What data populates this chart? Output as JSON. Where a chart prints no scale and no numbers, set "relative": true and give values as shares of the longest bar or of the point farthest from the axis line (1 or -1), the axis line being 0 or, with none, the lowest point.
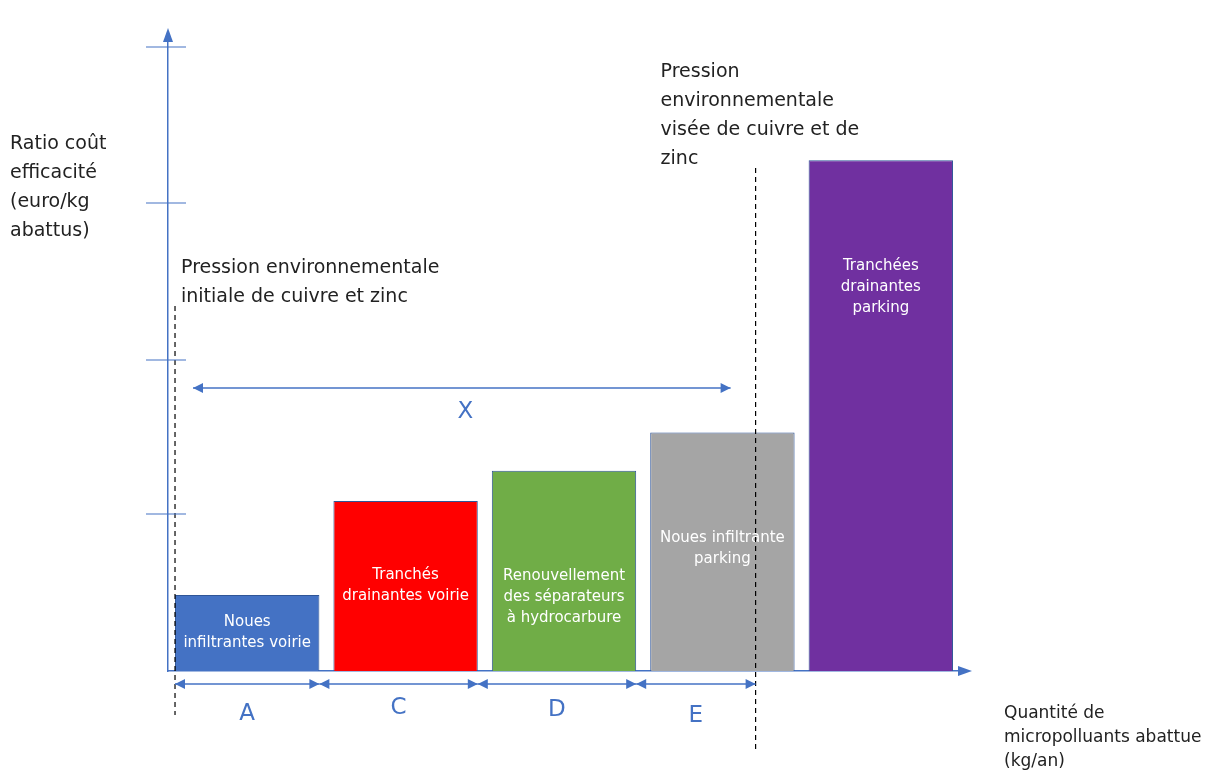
{
  "chart_data": {
    "type": "bar",
    "relative": true,
    "categories": [
      "Noues infiltrantes voirie",
      "Tranchés drainantes voirie",
      "Renouvellement des séparateurs à hydrocarbure",
      "Noues infiltrante parking",
      "Tranchées drainantes parking"
    ],
    "values": [
      0.149,
      0.333,
      0.392,
      0.467,
      1
    ],
    "colors": [
      "#4472c4",
      "#ff0000",
      "#70ad47",
      "#a5a5a5",
      "#7030a0"
    ],
    "ylabel": "Ratio coût efficacité (euro/kg abattus)",
    "xlabel": "Quantité de micropolluants abattue (kg/an)",
    "ref_lines": [
      {
        "axis": "x",
        "value": "Noues infiltrantes voirie",
        "label": "Pression environnementale initiale de cuivre et zinc",
        "line_style": "dashed",
        "color": "#000000"
      },
      {
        "axis": "x",
        "value": "Noues infiltrante parking",
        "label": "Pression environnementale visée de cuivre et de zinc",
        "line_style": "dashed",
        "color": "#000000"
      }
    ],
    "annotations": [
      "X",
      "A",
      "C",
      "D",
      "E"
    ],
    "legend": false
  }
}
